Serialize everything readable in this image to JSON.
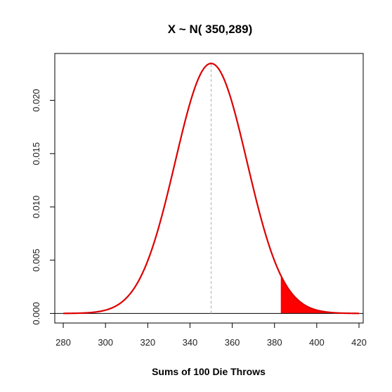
{
  "chart_data": {
    "type": "line",
    "title": "X ~  N( 350,289)",
    "xlabel": "Sums of 100 Die Throws",
    "ylabel": "",
    "xlim": [
      276,
      422
    ],
    "ylim": [
      -0.0009,
      0.0244
    ],
    "x_ticks": [
      280,
      300,
      320,
      340,
      360,
      380,
      400,
      420
    ],
    "y_ticks": [
      0.0,
      0.005,
      0.01,
      0.015,
      0.02
    ],
    "x_tick_labels": [
      "280",
      "300",
      "320",
      "340",
      "360",
      "380",
      "400",
      "420"
    ],
    "y_tick_labels": [
      "0.000",
      "0.005",
      "0.010",
      "0.015",
      "0.020"
    ],
    "distribution": {
      "mean": 350,
      "variance": 289
    },
    "curve_x_range": [
      280,
      420
    ],
    "shaded_from": 383,
    "mean_line": 350,
    "baseline_y": 0,
    "colors": {
      "curve": "#dd0000",
      "shade": "#ff0000",
      "mean_line": "#b0b0b0",
      "axis": "#000000"
    },
    "grid": false,
    "legend": "none"
  }
}
